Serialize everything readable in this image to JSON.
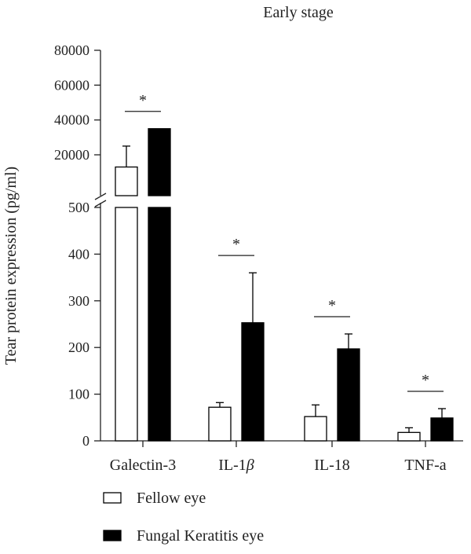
{
  "chart_data": {
    "type": "bar",
    "title": "Early stage",
    "ylabel": "Tear protein expression (pg/ml)",
    "xlabel": "",
    "categories": [
      "Galectin-3",
      "IL-1",
      "IL-18",
      "TNF-a"
    ],
    "category_suffix": {
      "IL-1": "β"
    },
    "y_axis": {
      "broken": true,
      "lower_range": [
        0,
        500
      ],
      "lower_ticks": [
        0,
        100,
        200,
        300,
        400,
        500
      ],
      "upper_range": [
        20000,
        80000
      ],
      "upper_ticks": [
        20000,
        40000,
        60000,
        80000
      ]
    },
    "series": [
      {
        "name": "Fellow eye",
        "fill": "#ffffff",
        "values": [
          13000,
          72,
          52,
          18
        ],
        "errors": [
          12000,
          10,
          25,
          10
        ]
      },
      {
        "name": "Fungal Keratitis eye",
        "fill": "#000000",
        "values": [
          35000,
          253,
          197,
          49
        ],
        "errors": [
          0,
          107,
          32,
          20
        ]
      }
    ],
    "significance": [
      {
        "category": "Galectin-3",
        "label": "*"
      },
      {
        "category": "IL-1",
        "label": "*"
      },
      {
        "category": "IL-18",
        "label": "*"
      },
      {
        "category": "TNF-a",
        "label": "*"
      }
    ],
    "legend_position": "bottom-left",
    "grid": false
  }
}
